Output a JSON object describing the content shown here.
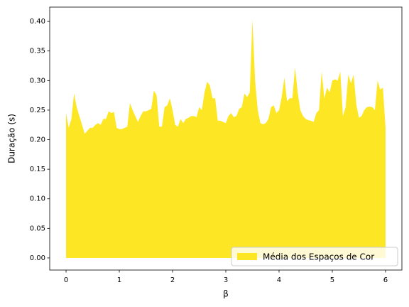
{
  "chart_data": {
    "type": "area",
    "xlabel": "β",
    "ylabel": "Duração (s)",
    "x": [
      0,
      0.05,
      0.1,
      0.15,
      0.2,
      0.25,
      0.3,
      0.35,
      0.4,
      0.45,
      0.5,
      0.55,
      0.6,
      0.65,
      0.7,
      0.75,
      0.8,
      0.85,
      0.9,
      0.95,
      1,
      1.05,
      1.1,
      1.15,
      1.2,
      1.25,
      1.3,
      1.35,
      1.4,
      1.45,
      1.5,
      1.55,
      1.6,
      1.65,
      1.7,
      1.75,
      1.8,
      1.85,
      1.9,
      1.95,
      2,
      2.05,
      2.1,
      2.15,
      2.2,
      2.25,
      2.3,
      2.35,
      2.4,
      2.45,
      2.5,
      2.55,
      2.6,
      2.65,
      2.7,
      2.75,
      2.8,
      2.85,
      2.9,
      2.95,
      3,
      3.05,
      3.1,
      3.15,
      3.2,
      3.25,
      3.3,
      3.35,
      3.4,
      3.45,
      3.5,
      3.55,
      3.6,
      3.65,
      3.7,
      3.75,
      3.8,
      3.85,
      3.9,
      3.95,
      4,
      4.05,
      4.1,
      4.15,
      4.2,
      4.25,
      4.3,
      4.35,
      4.4,
      4.45,
      4.5,
      4.55,
      4.6,
      4.65,
      4.7,
      4.75,
      4.8,
      4.85,
      4.9,
      4.95,
      5,
      5.05,
      5.1,
      5.15,
      5.2,
      5.25,
      5.3,
      5.35,
      5.4,
      5.45,
      5.5,
      5.55,
      5.6,
      5.65,
      5.7,
      5.75,
      5.8,
      5.85,
      5.9,
      5.95,
      6
    ],
    "series": [
      {
        "name": "Média dos Espaços de Cor",
        "color": "#fde725",
        "values": [
          0.245,
          0.22,
          0.235,
          0.278,
          0.255,
          0.24,
          0.225,
          0.21,
          0.215,
          0.22,
          0.22,
          0.225,
          0.228,
          0.225,
          0.235,
          0.235,
          0.248,
          0.245,
          0.247,
          0.22,
          0.218,
          0.218,
          0.22,
          0.222,
          0.262,
          0.25,
          0.24,
          0.23,
          0.24,
          0.248,
          0.248,
          0.25,
          0.252,
          0.283,
          0.275,
          0.222,
          0.222,
          0.255,
          0.258,
          0.27,
          0.25,
          0.225,
          0.222,
          0.235,
          0.228,
          0.235,
          0.237,
          0.24,
          0.24,
          0.238,
          0.255,
          0.25,
          0.28,
          0.298,
          0.292,
          0.27,
          0.27,
          0.232,
          0.232,
          0.23,
          0.228,
          0.24,
          0.245,
          0.238,
          0.24,
          0.252,
          0.255,
          0.278,
          0.272,
          0.28,
          0.403,
          0.3,
          0.25,
          0.228,
          0.226,
          0.228,
          0.235,
          0.255,
          0.258,
          0.245,
          0.25,
          0.272,
          0.305,
          0.265,
          0.27,
          0.27,
          0.322,
          0.28,
          0.25,
          0.24,
          0.235,
          0.233,
          0.232,
          0.23,
          0.245,
          0.25,
          0.315,
          0.27,
          0.288,
          0.28,
          0.3,
          0.302,
          0.3,
          0.315,
          0.24,
          0.255,
          0.31,
          0.295,
          0.31,
          0.26,
          0.237,
          0.24,
          0.25,
          0.255,
          0.256,
          0.255,
          0.25,
          0.3,
          0.285,
          0.288,
          0.22
        ]
      }
    ],
    "xlim": [
      -0.307,
      6.307
    ],
    "ylim": [
      -0.0205,
      0.4242
    ],
    "xticks": [
      0,
      1,
      2,
      3,
      4,
      5,
      6
    ],
    "yticks": [
      {
        "value": 0,
        "label": "0.00"
      },
      {
        "value": 0.05,
        "label": "0.05"
      },
      {
        "value": 0.1,
        "label": "0.10"
      },
      {
        "value": 0.15,
        "label": "0.15"
      },
      {
        "value": 0.2,
        "label": "0.20"
      },
      {
        "value": 0.25,
        "label": "0.25"
      },
      {
        "value": 0.3,
        "label": "0.30"
      },
      {
        "value": 0.35,
        "label": "0.35"
      },
      {
        "value": 0.4,
        "label": "0.40"
      }
    ],
    "legend": "lower right"
  }
}
